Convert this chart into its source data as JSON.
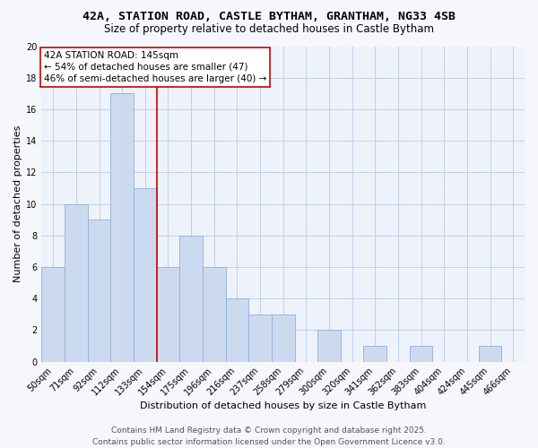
{
  "title_line1": "42A, STATION ROAD, CASTLE BYTHAM, GRANTHAM, NG33 4SB",
  "title_line2": "Size of property relative to detached houses in Castle Bytham",
  "xlabel": "Distribution of detached houses by size in Castle Bytham",
  "ylabel": "Number of detached properties",
  "categories": [
    "50sqm",
    "71sqm",
    "92sqm",
    "112sqm",
    "133sqm",
    "154sqm",
    "175sqm",
    "196sqm",
    "216sqm",
    "237sqm",
    "258sqm",
    "279sqm",
    "300sqm",
    "320sqm",
    "341sqm",
    "362sqm",
    "383sqm",
    "404sqm",
    "424sqm",
    "445sqm",
    "466sqm"
  ],
  "values": [
    6,
    10,
    9,
    17,
    11,
    6,
    8,
    6,
    4,
    3,
    3,
    0,
    2,
    0,
    1,
    0,
    1,
    0,
    0,
    1,
    0
  ],
  "bar_color": "#ccdaf0",
  "bar_edge_color": "#90b0d8",
  "red_line_x": 4.5,
  "annotation_line1": "42A STATION ROAD: 145sqm",
  "annotation_line2": "← 54% of detached houses are smaller (47)",
  "annotation_line3": "46% of semi-detached houses are larger (40) →",
  "annotation_box_color": "#ffffff",
  "annotation_box_edge": "#cc0000",
  "red_line_color": "#cc0000",
  "ylim": [
    0,
    20
  ],
  "yticks": [
    0,
    2,
    4,
    6,
    8,
    10,
    12,
    14,
    16,
    18,
    20
  ],
  "grid_color": "#c0cfe8",
  "background_color": "#eef2fa",
  "fig_background": "#f5f7fc",
  "footer_line1": "Contains HM Land Registry data © Crown copyright and database right 2025.",
  "footer_line2": "Contains public sector information licensed under the Open Government Licence v3.0.",
  "title_fontsize": 9.5,
  "subtitle_fontsize": 8.5,
  "axis_label_fontsize": 8,
  "tick_fontsize": 7,
  "annotation_fontsize": 7.5,
  "footer_fontsize": 6.5
}
